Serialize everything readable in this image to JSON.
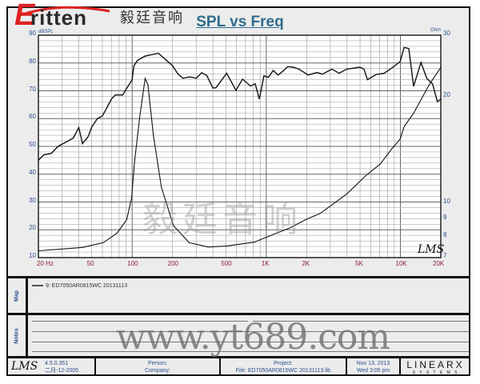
{
  "logo": {
    "brand": "Eritten",
    "brand_initial": "E",
    "brand_rest": "ritten",
    "chinese": "毅廷音响"
  },
  "watermark": {
    "chinese": "毅廷音响",
    "url": "www.yt689.com"
  },
  "chart_data": {
    "type": "line",
    "title": "SPL vs Freq",
    "xscale": "log",
    "xlim": [
      20,
      20000
    ],
    "xticks": [
      "20 Hz",
      "50",
      "100",
      "200",
      "500",
      "1K",
      "2K",
      "5K",
      "10K",
      "20K"
    ],
    "xtick_values": [
      20,
      50,
      100,
      200,
      500,
      1000,
      2000,
      5000,
      10000,
      20000
    ],
    "ylabel": "dBSPL",
    "ylim": [
      10,
      90
    ],
    "yticks": [
      "90",
      "80",
      "70",
      "60",
      "50",
      "40",
      "30",
      "20",
      "10"
    ],
    "y2label": "Ohm",
    "y2scale": "log",
    "y2lim": [
      7,
      30
    ],
    "y2ticks": [
      "30",
      "20",
      "10",
      "9",
      "8",
      "7"
    ],
    "grid": true,
    "corner_mark": "LMS",
    "series": [
      {
        "axis": "left",
        "x": [
          20,
          22,
          25,
          28,
          32,
          36.4,
          40,
          42.6,
          47,
          50,
          55,
          60,
          65,
          70,
          75,
          85,
          90,
          100,
          103,
          110,
          125,
          157,
          180,
          200,
          220,
          240,
          270,
          300,
          330,
          360,
          400,
          422,
          506,
          594,
          665,
          763,
          827,
          888,
          960,
          1035,
          1126,
          1222,
          1327,
          1441,
          1592,
          1747,
          2051,
          2392,
          2620,
          3085,
          3490,
          3965,
          4990,
          5350,
          5680,
          6600,
          7570,
          8680,
          9950,
          10670,
          11550,
          12530,
          14230,
          15740,
          17370,
          18860,
          20000
        ],
        "values": [
          45,
          47,
          47.5,
          50,
          51.5,
          53,
          56.8,
          51,
          53.5,
          57,
          60,
          61,
          64,
          67,
          68.5,
          68.5,
          70.5,
          74,
          79,
          81,
          82.5,
          83.5,
          81,
          79,
          76,
          74.5,
          75,
          74.5,
          76.5,
          75.5,
          71,
          71.1,
          76.3,
          70.2,
          74.2,
          71.7,
          72.5,
          67,
          75.4,
          74.8,
          77.3,
          75.7,
          77,
          78.7,
          78.5,
          77.8,
          75.7,
          76.6,
          76,
          77.8,
          76.3,
          77.8,
          78.5,
          77.8,
          74,
          75.9,
          76.3,
          78.3,
          80.5,
          85.6,
          85.2,
          71.6,
          80.2,
          74.4,
          72.5,
          66.1,
          67
        ]
      },
      {
        "axis": "right",
        "x": [
          20,
          42.6,
          61,
          77,
          91,
          99,
          104,
          114,
          125,
          131,
          144,
          165,
          203,
          266,
          369,
          506,
          820,
          1000,
          1500,
          2000,
          2514,
          3965,
          5570,
          7050,
          8680,
          9950,
          10670,
          12530,
          16380,
          20000
        ],
        "values": [
          7.32,
          7.48,
          7.72,
          8.21,
          8.96,
          10.33,
          13.0,
          17.6,
          22.6,
          21.7,
          15.6,
          11.1,
          8.63,
          7.72,
          7.5,
          7.55,
          7.75,
          8.0,
          8.5,
          9.0,
          9.34,
          10.6,
          12.0,
          12.9,
          14.3,
          15.2,
          16.5,
          18.0,
          21.7,
          24.3
        ]
      }
    ]
  },
  "map": {
    "label": "Map",
    "legend": "9: ED7050AR0815WC   20131113"
  },
  "notes": {
    "label": "Notes"
  },
  "footer": {
    "lms_logo": "LMS",
    "version": "4.5.0.351",
    "build_date": "二月-12-2005",
    "person": "Person:",
    "company": "Company:",
    "project": "Project:",
    "file": "File: ED7050AR0815WC 20131113.lib",
    "date": "Nov 13, 2013",
    "time": "Wed  3:05 pm",
    "brand": "LINEARX",
    "brand_sub": "S Y S T E M S"
  },
  "colors": {
    "title": "#2f6c8c",
    "axis_labels": "#2a4f8c",
    "x_labels": "#8c1a3a",
    "logo_red": "#dd2222"
  }
}
